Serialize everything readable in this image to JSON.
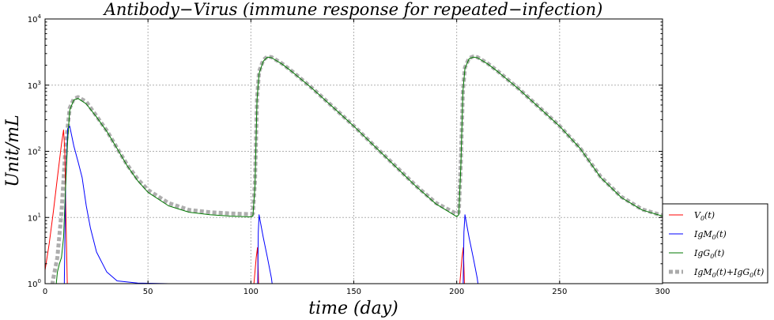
{
  "chart_data": {
    "type": "line",
    "title": "Antibody−Virus (immune response for repeated−infection)",
    "xlabel": "time (day)",
    "ylabel": "Unit/mL",
    "xlim": [
      0,
      300
    ],
    "ylim": [
      1,
      10000
    ],
    "yscale": "log",
    "grid": true,
    "xticks": [
      0,
      50,
      100,
      150,
      200,
      250,
      300
    ],
    "xtick_labels": [
      "0",
      "50",
      "100",
      "150",
      "200",
      "250",
      "300"
    ],
    "yticks": [
      1,
      10,
      100,
      1000,
      10000
    ],
    "ytick_labels": [
      {
        "base": "10",
        "exp": "0"
      },
      {
        "base": "10",
        "exp": "1"
      },
      {
        "base": "10",
        "exp": "2"
      },
      {
        "base": "10",
        "exp": "3"
      },
      {
        "base": "10",
        "exp": "4"
      }
    ],
    "legend_position": "lower-right-outside",
    "series": [
      {
        "name": "V0(t)",
        "legend": {
          "pre": "V",
          "sub": "0",
          "post": "(t)"
        },
        "color": "#ff0000",
        "style": "solid",
        "segments": [
          [
            [
              0,
              1.6
            ],
            [
              2,
              4
            ],
            [
              4,
              12
            ],
            [
              6,
              40
            ],
            [
              8,
              130
            ],
            [
              9,
              210
            ],
            [
              9.6,
              100
            ],
            [
              10.2,
              8
            ],
            [
              10.8,
              1
            ],
            [
              11.3,
              0.5
            ]
          ],
          [
            [
              100.2,
              0.5
            ],
            [
              101.5,
              1
            ],
            [
              102.6,
              2.5
            ],
            [
              103.2,
              3.5
            ],
            [
              103.6,
              1.5
            ],
            [
              104,
              0.5
            ]
          ],
          [
            [
              200.2,
              0.5
            ],
            [
              201.5,
              1
            ],
            [
              202.6,
              2.5
            ],
            [
              203.2,
              3.5
            ],
            [
              203.6,
              1.5
            ],
            [
              204,
              0.5
            ]
          ]
        ]
      },
      {
        "name": "IgM0(t)",
        "legend": {
          "pre": "IgM",
          "sub": "0",
          "post": "(t)"
        },
        "color": "#0000ff",
        "style": "solid",
        "segments": [
          [
            [
              9.2,
              0.5
            ],
            [
              10,
              30
            ],
            [
              11,
              220
            ],
            [
              12,
              240
            ],
            [
              14,
              120
            ],
            [
              16,
              70
            ],
            [
              18,
              40
            ],
            [
              20,
              15
            ],
            [
              22,
              7
            ],
            [
              25,
              3
            ],
            [
              30,
              1.5
            ],
            [
              35,
              1.1
            ],
            [
              45,
              1.02
            ],
            [
              60,
              1
            ],
            [
              100,
              1
            ]
          ],
          [
            [
              103.2,
              0.5
            ],
            [
              103.6,
              6
            ],
            [
              104,
              11
            ],
            [
              104.5,
              9
            ],
            [
              106,
              5
            ],
            [
              108,
              2.5
            ],
            [
              110,
              1.2
            ],
            [
              111.5,
              0.5
            ]
          ],
          [
            [
              203,
              0.5
            ],
            [
              203.5,
              6
            ],
            [
              204,
              11
            ],
            [
              204.5,
              9
            ],
            [
              206,
              5
            ],
            [
              208,
              2.5
            ],
            [
              210,
              1.2
            ],
            [
              211.5,
              0.5
            ]
          ]
        ]
      },
      {
        "name": "IgG0(t)",
        "legend": {
          "pre": "IgG",
          "sub": "0",
          "post": "(t)"
        },
        "color": "#007700",
        "style": "solid",
        "segments": [
          [
            [
              4.5,
              0.5
            ],
            [
              6,
              1.5
            ],
            [
              7,
              2
            ],
            [
              8,
              2.5
            ],
            [
              9,
              5
            ],
            [
              10,
              30
            ],
            [
              11,
              150
            ],
            [
              12,
              420
            ],
            [
              14,
              600
            ],
            [
              16,
              630
            ],
            [
              20,
              520
            ],
            [
              25,
              330
            ],
            [
              30,
              200
            ],
            [
              35,
              110
            ],
            [
              40,
              60
            ],
            [
              45,
              36
            ],
            [
              50,
              24
            ],
            [
              60,
              15
            ],
            [
              70,
              12
            ],
            [
              80,
              11
            ],
            [
              90,
              10.5
            ],
            [
              100,
              10.2
            ],
            [
              101,
              10.5
            ],
            [
              102,
              30
            ],
            [
              103,
              600
            ],
            [
              104,
              1500
            ],
            [
              106,
              2300
            ],
            [
              108,
              2650
            ],
            [
              110,
              2600
            ],
            [
              115,
              2100
            ],
            [
              120,
              1600
            ],
            [
              130,
              880
            ],
            [
              140,
              460
            ],
            [
              150,
              240
            ],
            [
              160,
              120
            ],
            [
              170,
              60
            ],
            [
              180,
              30
            ],
            [
              190,
              16
            ],
            [
              200,
              10.3
            ],
            [
              201,
              11
            ],
            [
              202,
              60
            ],
            [
              203,
              800
            ],
            [
              204,
              1800
            ],
            [
              206,
              2500
            ],
            [
              208,
              2650
            ],
            [
              210,
              2600
            ],
            [
              215,
              2100
            ],
            [
              220,
              1600
            ],
            [
              230,
              880
            ],
            [
              240,
              460
            ],
            [
              250,
              240
            ],
            [
              260,
              110
            ],
            [
              270,
              40
            ],
            [
              280,
              20
            ],
            [
              290,
              13
            ],
            [
              300,
              10.5
            ]
          ]
        ]
      },
      {
        "name": "IgM0(t)+IgG0(t)",
        "legend": {
          "pre": "IgM",
          "sub": "0",
          "post": "(t)+IgG",
          "sub2": "0",
          "post2": "(t)"
        },
        "color": "#aaaaaa",
        "style": "dotted",
        "segments": [
          [
            [
              2,
              0.5
            ],
            [
              4,
              1.2
            ],
            [
              6,
              2.5
            ],
            [
              8,
              12
            ],
            [
              10,
              120
            ],
            [
              12,
              450
            ],
            [
              14,
              620
            ],
            [
              16,
              660
            ],
            [
              20,
              560
            ],
            [
              25,
              340
            ],
            [
              30,
              205
            ],
            [
              35,
              112
            ],
            [
              40,
              62
            ],
            [
              45,
              38
            ],
            [
              50,
              26
            ],
            [
              60,
              16.5
            ],
            [
              70,
              13
            ],
            [
              80,
              12
            ],
            [
              90,
              11.5
            ],
            [
              100,
              11.2
            ],
            [
              101,
              11.5
            ],
            [
              102,
              35
            ],
            [
              103,
              620
            ],
            [
              104,
              1600
            ],
            [
              106,
              2400
            ],
            [
              108,
              2700
            ],
            [
              110,
              2650
            ],
            [
              115,
              2130
            ],
            [
              120,
              1620
            ],
            [
              130,
              890
            ],
            [
              140,
              465
            ],
            [
              150,
              242
            ],
            [
              160,
              121
            ],
            [
              170,
              61
            ],
            [
              180,
              30.5
            ],
            [
              190,
              16.5
            ],
            [
              200,
              11.3
            ],
            [
              201,
              12
            ],
            [
              202,
              70
            ],
            [
              203,
              820
            ],
            [
              204,
              1850
            ],
            [
              206,
              2550
            ],
            [
              208,
              2700
            ],
            [
              210,
              2650
            ],
            [
              215,
              2130
            ],
            [
              220,
              1620
            ],
            [
              230,
              890
            ],
            [
              240,
              465
            ],
            [
              250,
              242
            ],
            [
              260,
              111
            ],
            [
              270,
              41
            ],
            [
              280,
              20.5
            ],
            [
              290,
              13.3
            ],
            [
              300,
              10.7
            ]
          ]
        ]
      }
    ]
  }
}
